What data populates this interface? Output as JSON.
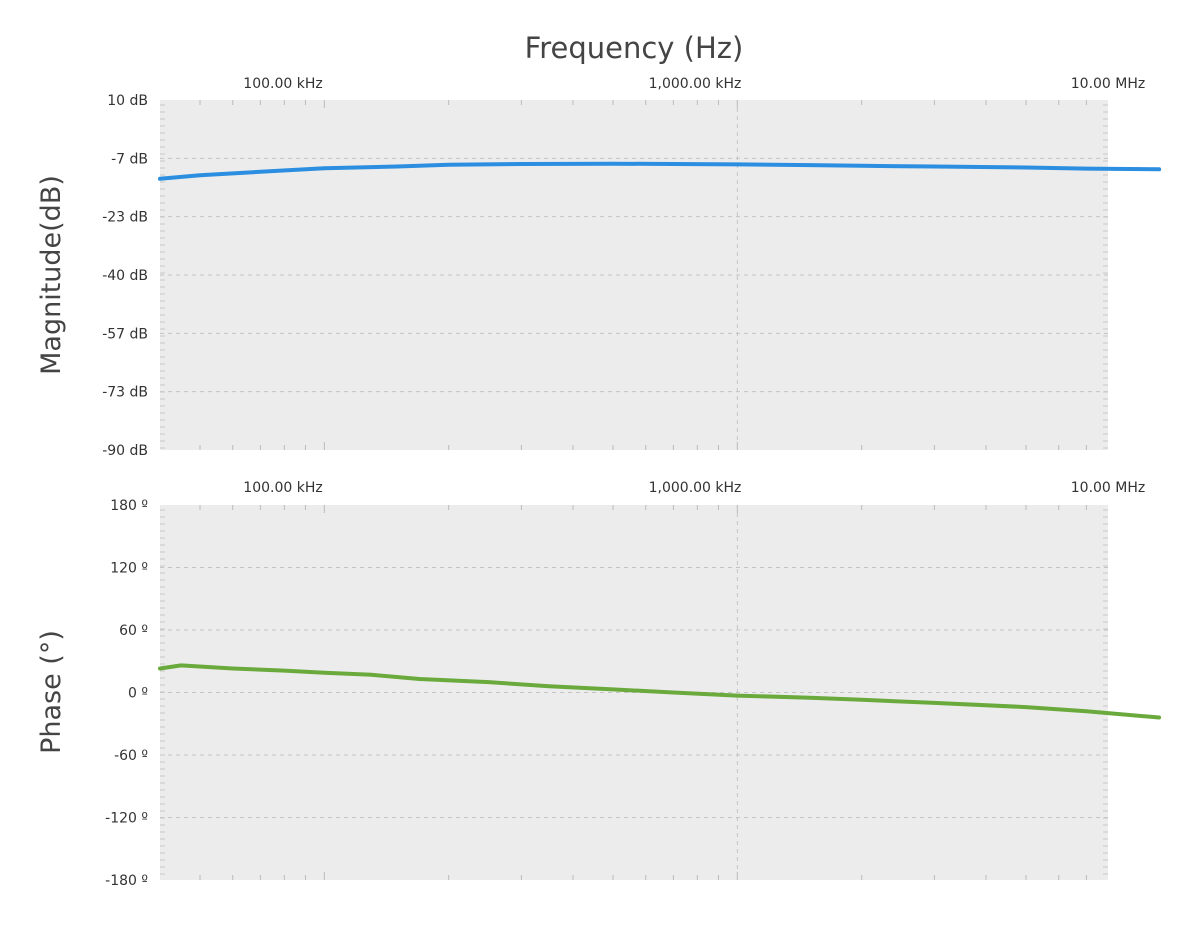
{
  "chart_data": [
    {
      "type": "line",
      "title": "Frequency (Hz)",
      "xlabel": "",
      "ylabel": "Magnitude(dB)",
      "x_scale": "log",
      "xlim": [
        40000,
        10500000
      ],
      "ylim": [
        -90,
        10
      ],
      "y_ticks": [
        "10 dB",
        "-7 dB",
        "-23 dB",
        "-40 dB",
        "-57 dB",
        "-73 dB",
        "-90 dB"
      ],
      "x_ticks": [
        "100.00 kHz",
        "1,000.00 kHz",
        "10.00 MHz"
      ],
      "grid": true,
      "color": "#2b8ee0",
      "series": [
        {
          "x": [
            40000,
            50000,
            70000,
            100000,
            150000,
            200000,
            300000,
            500000,
            700000,
            1000000,
            1500000,
            2000000,
            3000000,
            5000000,
            7000000,
            10500000
          ],
          "values": [
            -12.5,
            -11.5,
            -10.5,
            -9.5,
            -9.0,
            -8.5,
            -8.3,
            -8.2,
            -8.3,
            -8.4,
            -8.6,
            -8.8,
            -9.0,
            -9.3,
            -9.6,
            -9.8
          ]
        }
      ]
    },
    {
      "type": "line",
      "title": "",
      "xlabel": "",
      "ylabel": "Phase (°)",
      "x_scale": "log",
      "xlim": [
        40000,
        10500000
      ],
      "ylim": [
        -180,
        180
      ],
      "y_ticks": [
        "180 º",
        "120 º",
        "60 º",
        "0 º",
        "-60 º",
        "-120 º",
        "-180 º"
      ],
      "x_ticks": [
        "100.00 kHz",
        "1,000.00 kHz",
        "10.00 MHz"
      ],
      "grid": true,
      "color": "#6aaa3c",
      "series": [
        {
          "x": [
            40000,
            45000,
            60000,
            80000,
            100000,
            130000,
            170000,
            250000,
            350000,
            500000,
            700000,
            1000000,
            1500000,
            2000000,
            3000000,
            5000000,
            7000000,
            10500000
          ],
          "values": [
            23,
            26,
            23,
            21,
            19,
            17,
            13,
            10,
            6,
            3,
            0,
            -3,
            -5,
            -7,
            -10,
            -14,
            -18,
            -24
          ]
        }
      ]
    }
  ]
}
